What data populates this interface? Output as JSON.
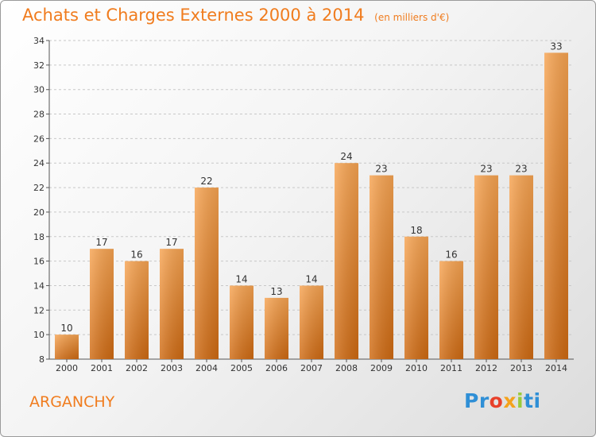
{
  "chart_data": {
    "type": "bar",
    "title": "Achats et Charges Externes 2000 à 2014",
    "subtitle": "(en milliers d'€)",
    "categories": [
      "2000",
      "2001",
      "2002",
      "2003",
      "2004",
      "2005",
      "2006",
      "2007",
      "2008",
      "2009",
      "2010",
      "2011",
      "2012",
      "2013",
      "2014"
    ],
    "values": [
      10,
      17,
      16,
      17,
      22,
      14,
      13,
      14,
      24,
      23,
      18,
      16,
      23,
      23,
      33
    ],
    "ylim": [
      8,
      34
    ],
    "yticks": [
      8,
      10,
      12,
      14,
      16,
      18,
      20,
      22,
      24,
      26,
      28,
      30,
      32,
      34
    ],
    "grid": true,
    "bar_color": "#f08c2a",
    "title_color": "#f07c1e"
  },
  "footer": {
    "commune": "ARGANCHY",
    "logo_text": "Proxiti"
  }
}
